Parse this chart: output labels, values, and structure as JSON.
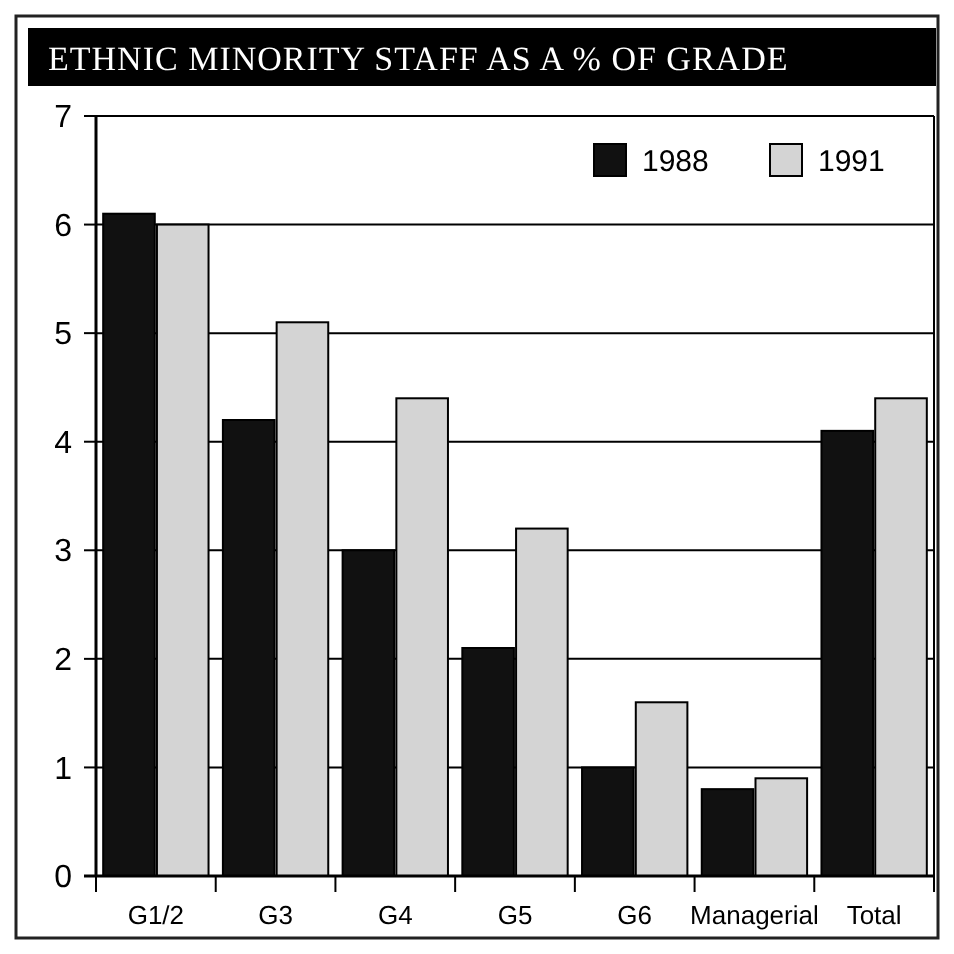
{
  "chart_data": {
    "type": "bar",
    "title": "ETHNIC MINORITY STAFF AS A % OF GRADE",
    "categories": [
      "G1/2",
      "G3",
      "G4",
      "G5",
      "G6",
      "Managerial",
      "Total"
    ],
    "series": [
      {
        "name": "1988",
        "color": "#111111",
        "values": [
          6.1,
          4.2,
          3.0,
          2.1,
          1.0,
          0.8,
          4.1
        ]
      },
      {
        "name": "1991",
        "color": "#d4d4d4",
        "values": [
          6.0,
          5.1,
          4.4,
          3.2,
          1.6,
          0.9,
          4.4
        ]
      }
    ],
    "ylim": [
      0,
      7
    ],
    "yticks": [
      0,
      1,
      2,
      3,
      4,
      5,
      6,
      7
    ],
    "grid": "y",
    "legend": "top right"
  }
}
